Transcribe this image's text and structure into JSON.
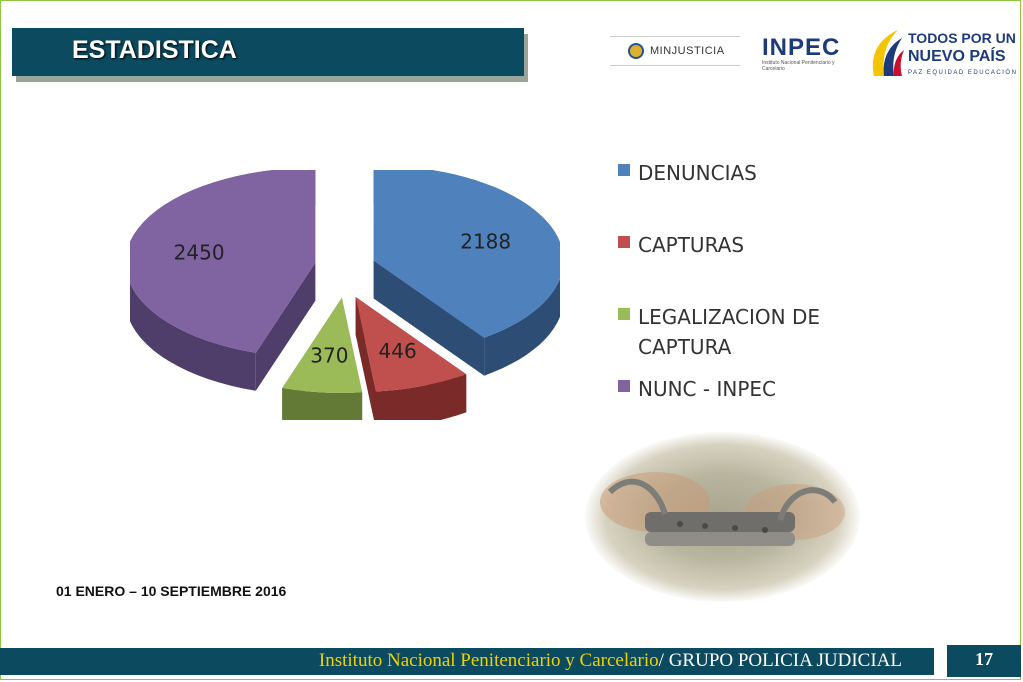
{
  "slide": {
    "title": "ESTADISTICA",
    "date_range": "01 ENERO – 10 SEPTIEMBRE 2016",
    "page_number": "17"
  },
  "logos": {
    "minjusticia": "MINJUSTICIA",
    "inpec": "INPEC",
    "inpec_sub": "Instituto Nacional Penitenciario y Carcelario",
    "todos_por_un": "TODOS POR UN",
    "nuevo_pais": "NUEVO PAÍS",
    "tagline": "PAZ  EQUIDAD  EDUCACIÓN"
  },
  "footer": {
    "highlight": "Instituto Nacional Penitenciario y Carcelario",
    "rest": "/ GRUPO POLICIA JUDICIAL"
  },
  "colors": {
    "title_bar": "#0c4a60",
    "footer_highlight": "#f0d200",
    "frame": "#8cc63f"
  },
  "chart_data": {
    "type": "pie",
    "title": "",
    "categories": [
      "DENUNCIAS",
      "CAPTURAS",
      "LEGALIZACION DE CAPTURA",
      "NUNC - INPEC"
    ],
    "values": [
      2188,
      446,
      370,
      2450
    ],
    "colors": [
      "#4f81bd",
      "#c0504d",
      "#9bbb59",
      "#8064a2"
    ],
    "side_colors": [
      "#2d4d75",
      "#7a2a28",
      "#637a36",
      "#503e6a"
    ],
    "legend_position": "right",
    "style": "3d-exploded",
    "data_labels": true
  },
  "photo": {
    "icon": "handcuffs-photo"
  }
}
